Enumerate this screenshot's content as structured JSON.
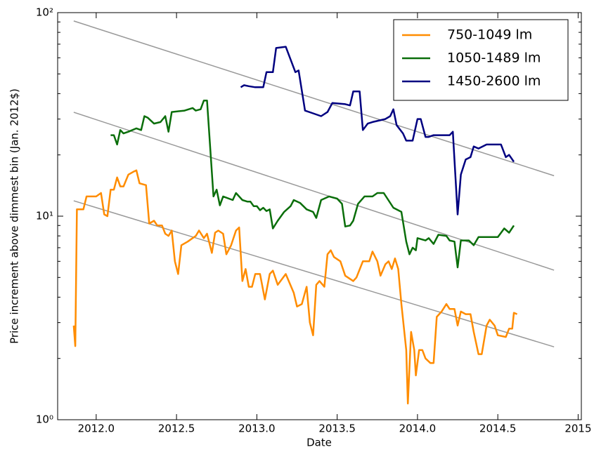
{
  "chart_data": {
    "type": "line",
    "xlabel": "Date",
    "ylabel": "Price increment above dimmest bin (Jan. 2012$)",
    "xlim": [
      2011.76,
      2015.02
    ],
    "xticks": [
      {
        "value": 2012,
        "label": "2012.0"
      },
      2012.5,
      {
        "value": 2013,
        "label": "2013.0"
      },
      2013.5,
      {
        "value": 2014,
        "label": "2014.0"
      },
      2014.5,
      2015
    ],
    "ylim": [
      1,
      100
    ],
    "yticks": [
      {
        "value": 1,
        "label": "10⁰"
      },
      {
        "value": 10,
        "label": "10¹"
      },
      {
        "value": 100,
        "label": "10²"
      }
    ],
    "log_y": true,
    "legend": "upper right",
    "series": [
      {
        "name": "750-1049 lm",
        "color": "#ff8c00",
        "x": [
          2011.86,
          2011.87,
          2011.88,
          2011.92,
          2011.94,
          2012.0,
          2012.03,
          2012.05,
          2012.07,
          2012.09,
          2012.11,
          2012.13,
          2012.15,
          2012.17,
          2012.2,
          2012.23,
          2012.25,
          2012.27,
          2012.31,
          2012.33,
          2012.36,
          2012.38,
          2012.41,
          2012.43,
          2012.45,
          2012.47,
          2012.49,
          2012.51,
          2012.53,
          2012.57,
          2012.62,
          2012.64,
          2012.67,
          2012.69,
          2012.72,
          2012.74,
          2012.76,
          2012.79,
          2012.81,
          2012.84,
          2012.87,
          2012.89,
          2012.91,
          2012.93,
          2012.95,
          2012.97,
          2012.99,
          2013.02,
          2013.05,
          2013.08,
          2013.1,
          2013.13,
          2013.18,
          2013.23,
          2013.25,
          2013.28,
          2013.31,
          2013.33,
          2013.35,
          2013.37,
          2013.39,
          2013.42,
          2013.44,
          2013.46,
          2013.48,
          2013.52,
          2013.55,
          2013.6,
          2013.62,
          2013.66,
          2013.7,
          2013.72,
          2013.75,
          2013.77,
          2013.8,
          2013.82,
          2013.84,
          2013.86,
          2013.88,
          2013.9,
          2013.93,
          2013.94,
          2013.96,
          2013.98,
          2013.99,
          2014.01,
          2014.03,
          2014.05,
          2014.08,
          2014.1,
          2014.12,
          2014.15,
          2014.18,
          2014.2,
          2014.23,
          2014.25,
          2014.27,
          2014.3,
          2014.33,
          2014.35,
          2014.38,
          2014.4,
          2014.43,
          2014.45,
          2014.48,
          2014.5,
          2014.55,
          2014.57,
          2014.59,
          2014.6,
          2014.62
        ],
        "values": [
          2.9,
          2.3,
          10.8,
          10.8,
          12.5,
          12.5,
          13,
          10.2,
          10,
          13.5,
          13.5,
          15.5,
          14,
          14,
          16,
          16.5,
          16.8,
          14.5,
          14.2,
          9.2,
          9.5,
          9,
          9,
          8.2,
          8,
          8.5,
          6,
          5.2,
          7.2,
          7.5,
          8,
          8.5,
          7.8,
          8.2,
          6.6,
          8.3,
          8.5,
          8.2,
          6.5,
          7.2,
          8.5,
          8.8,
          4.8,
          5.5,
          4.5,
          4.5,
          5.2,
          5.2,
          3.9,
          5.2,
          5.4,
          4.6,
          5.2,
          4.2,
          3.6,
          3.7,
          4.5,
          3,
          2.6,
          4.6,
          4.8,
          4.5,
          6.5,
          6.8,
          6.3,
          6,
          5.1,
          4.8,
          5,
          6,
          6,
          6.7,
          6,
          5.1,
          5.8,
          6,
          5.5,
          6.2,
          5.5,
          3.7,
          2.2,
          1.2,
          2.7,
          2.2,
          1.65,
          2.2,
          2.2,
          2,
          1.9,
          1.9,
          3.2,
          3.4,
          3.7,
          3.5,
          3.5,
          2.9,
          3.4,
          3.3,
          3.3,
          2.7,
          2.1,
          2.1,
          2.9,
          3.1,
          2.9,
          2.6,
          2.55,
          2.8,
          2.8,
          3.35,
          3.3
        ]
      },
      {
        "name": "1050-1489 lm",
        "color": "#0a6e0a",
        "x": [
          2012.09,
          2012.11,
          2012.13,
          2012.15,
          2012.17,
          2012.2,
          2012.25,
          2012.28,
          2012.3,
          2012.32,
          2012.36,
          2012.4,
          2012.43,
          2012.45,
          2012.47,
          2012.55,
          2012.6,
          2012.62,
          2012.65,
          2012.67,
          2012.69,
          2012.73,
          2012.75,
          2012.77,
          2012.79,
          2012.85,
          2012.87,
          2012.91,
          2012.94,
          2012.96,
          2012.98,
          2013.0,
          2013.02,
          2013.04,
          2013.06,
          2013.08,
          2013.1,
          2013.13,
          2013.17,
          2013.21,
          2013.23,
          2013.27,
          2013.31,
          2013.35,
          2013.37,
          2013.4,
          2013.45,
          2013.5,
          2013.53,
          2013.55,
          2013.58,
          2013.6,
          2013.63,
          2013.67,
          2013.72,
          2013.75,
          2013.79,
          2013.85,
          2013.9,
          2013.93,
          2013.95,
          2013.97,
          2013.99,
          2014.0,
          2014.05,
          2014.07,
          2014.1,
          2014.13,
          2014.18,
          2014.2,
          2014.23,
          2014.25,
          2014.27,
          2014.32,
          2014.35,
          2014.38,
          2014.5,
          2014.54,
          2014.57,
          2014.6
        ],
        "values": [
          25,
          25,
          22.5,
          26.5,
          25.5,
          26,
          27,
          26.5,
          31,
          30.5,
          28.5,
          29,
          31,
          26,
          32.5,
          33,
          34,
          33,
          33.5,
          37,
          37,
          12.5,
          13.5,
          11.3,
          12.5,
          12,
          13,
          12,
          11.8,
          11.8,
          11.2,
          11.2,
          10.7,
          11,
          10.6,
          10.8,
          8.7,
          9.5,
          10.5,
          11.2,
          12,
          11.6,
          10.8,
          10.5,
          9.8,
          12,
          12.5,
          12.2,
          11.5,
          8.9,
          9,
          9.5,
          11.5,
          12.5,
          12.5,
          13,
          13,
          11,
          10.5,
          7.5,
          6.5,
          7,
          6.8,
          7.8,
          7.6,
          7.8,
          7.3,
          8.1,
          8,
          7.6,
          7.5,
          5.6,
          7.6,
          7.6,
          7.2,
          7.9,
          7.9,
          8.7,
          8.3,
          9
        ]
      },
      {
        "name": "1450-2600 lm",
        "color": "#000080",
        "x": [
          2012.9,
          2012.92,
          2012.95,
          2012.99,
          2013.04,
          2013.06,
          2013.1,
          2013.12,
          2013.18,
          2013.24,
          2013.26,
          2013.3,
          2013.35,
          2013.4,
          2013.44,
          2013.47,
          2013.55,
          2013.58,
          2013.6,
          2013.64,
          2013.66,
          2013.69,
          2013.72,
          2013.8,
          2013.83,
          2013.85,
          2013.87,
          2013.91,
          2013.93,
          2013.97,
          2014.0,
          2014.02,
          2014.05,
          2014.07,
          2014.1,
          2014.15,
          2014.2,
          2014.22,
          2014.25,
          2014.27,
          2014.3,
          2014.33,
          2014.35,
          2014.38,
          2014.43,
          2014.52,
          2014.55,
          2014.57,
          2014.6
        ],
        "values": [
          43,
          44,
          43.5,
          43,
          43,
          51,
          51,
          67,
          68,
          51,
          52,
          33,
          32,
          31,
          32.5,
          36,
          35.5,
          35,
          41,
          41,
          26.5,
          28.5,
          29,
          30,
          31,
          33.5,
          28,
          25.5,
          23.5,
          23.5,
          30,
          30,
          24.5,
          24.5,
          25,
          25,
          25,
          26,
          10.2,
          16,
          19,
          19.5,
          22,
          21.5,
          22.5,
          22.5,
          19.5,
          20,
          18.5
        ]
      }
    ],
    "trend_color": "#999999",
    "trend_lines": [
      {
        "x": [
          2011.86,
          2014.85
        ],
        "values": [
          91,
          15.8
        ]
      },
      {
        "x": [
          2011.86,
          2014.85
        ],
        "values": [
          32.4,
          5.43
        ]
      },
      {
        "x": [
          2011.86,
          2014.85
        ],
        "values": [
          11.9,
          2.28
        ]
      }
    ]
  }
}
